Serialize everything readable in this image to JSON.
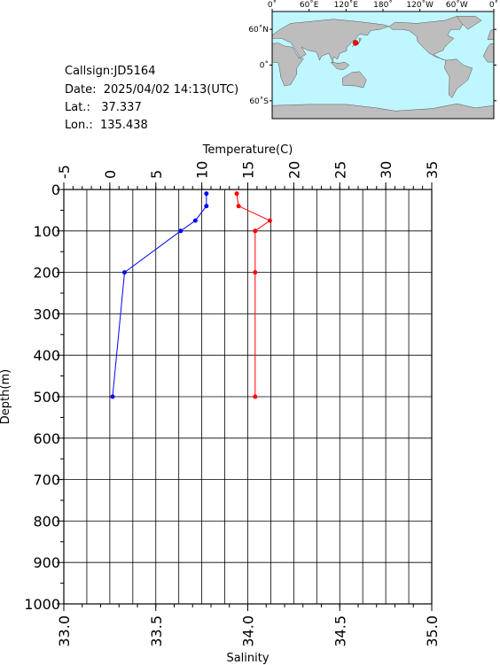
{
  "station": {
    "callsign_label": "Callsign:",
    "callsign": "JD5164",
    "date_label": "Date:",
    "date": "2025/04/02 14:13(UTC)",
    "lat_label": "Lat.:",
    "lat": "37.337",
    "lon_label": "Lon.:",
    "lon": "135.438"
  },
  "map": {
    "top_labels": [
      "0˚",
      "60˚E",
      "120˚E",
      "180˚",
      "120˚W",
      "60˚W",
      "0˚"
    ],
    "side_labels": [
      "60˚N",
      "0˚",
      "60˚S"
    ],
    "colors": {
      "ocean": "#bff6ff",
      "land": "#bdbdbd",
      "marker": "#ff0000"
    }
  },
  "chart_data": {
    "type": "line",
    "title": "",
    "ylabel": "Depth(m)",
    "ylim": [
      0,
      1000
    ],
    "yticks": [
      "0",
      "100",
      "200",
      "300",
      "400",
      "500",
      "600",
      "700",
      "800",
      "900",
      "1000"
    ],
    "temperature_axis": {
      "label": "Temperature(C)",
      "range": [
        -5,
        35
      ],
      "ticks": [
        "-5",
        "0",
        "5",
        "10",
        "15",
        "20",
        "25",
        "30",
        "35"
      ]
    },
    "salinity_axis": {
      "label": "Salinity",
      "range": [
        33.0,
        35.0
      ],
      "ticks": [
        "33.0",
        "33.5",
        "34.0",
        "34.5",
        "35.0"
      ]
    },
    "grid": true,
    "series": [
      {
        "axis": "temperature",
        "color": "#0000ff",
        "points": [
          {
            "x": 10.5,
            "y": 10
          },
          {
            "x": 10.5,
            "y": 40
          },
          {
            "x": 9.3,
            "y": 75
          },
          {
            "x": 7.7,
            "y": 100
          },
          {
            "x": 1.6,
            "y": 200
          },
          {
            "x": 0.3,
            "y": 500
          }
        ]
      },
      {
        "axis": "salinity",
        "color": "#ff0000",
        "points": [
          {
            "x": 33.94,
            "y": 10
          },
          {
            "x": 33.95,
            "y": 40
          },
          {
            "x": 34.12,
            "y": 75
          },
          {
            "x": 34.04,
            "y": 100
          },
          {
            "x": 34.04,
            "y": 200
          },
          {
            "x": 34.04,
            "y": 500
          }
        ]
      }
    ]
  }
}
